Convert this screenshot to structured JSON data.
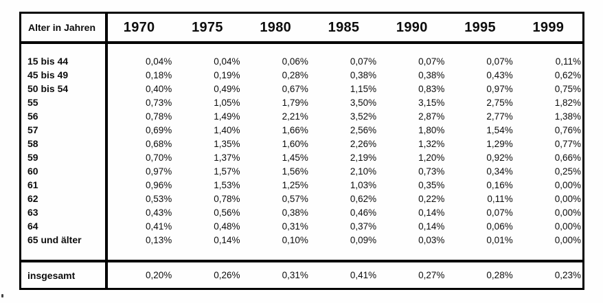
{
  "colors": {
    "background": "#fefefe",
    "border": "#000000",
    "text": "#0c0c0c"
  },
  "table": {
    "corner_header": "Alter in Jahren",
    "years": [
      "1970",
      "1975",
      "1980",
      "1985",
      "1990",
      "1995",
      "1999"
    ],
    "rows": [
      {
        "label": "15 bis 44",
        "values": [
          "0,04%",
          "0,04%",
          "0,06%",
          "0,07%",
          "0,07%",
          "0,07%",
          "0,11%"
        ]
      },
      {
        "label": "45 bis 49",
        "values": [
          "0,18%",
          "0,19%",
          "0,28%",
          "0,38%",
          "0,38%",
          "0,43%",
          "0,62%"
        ]
      },
      {
        "label": "50 bis 54",
        "values": [
          "0,40%",
          "0,49%",
          "0,67%",
          "1,15%",
          "0,83%",
          "0,97%",
          "0,75%"
        ]
      },
      {
        "label": "55",
        "values": [
          "0,73%",
          "1,05%",
          "1,79%",
          "3,50%",
          "3,15%",
          "2,75%",
          "1,82%"
        ]
      },
      {
        "label": "56",
        "values": [
          "0,78%",
          "1,49%",
          "2,21%",
          "3,52%",
          "2,87%",
          "2,77%",
          "1,38%"
        ]
      },
      {
        "label": "57",
        "values": [
          "0,69%",
          "1,40%",
          "1,66%",
          "2,56%",
          "1,80%",
          "1,54%",
          "0,76%"
        ]
      },
      {
        "label": "58",
        "values": [
          "0,68%",
          "1,35%",
          "1,60%",
          "2,26%",
          "1,32%",
          "1,29%",
          "0,77%"
        ]
      },
      {
        "label": "59",
        "values": [
          "0,70%",
          "1,37%",
          "1,45%",
          "2,19%",
          "1,20%",
          "0,92%",
          "0,66%"
        ]
      },
      {
        "label": "60",
        "values": [
          "0,97%",
          "1,57%",
          "1,56%",
          "2,10%",
          "0,73%",
          "0,34%",
          "0,25%"
        ]
      },
      {
        "label": "61",
        "values": [
          "0,96%",
          "1,53%",
          "1,25%",
          "1,03%",
          "0,35%",
          "0,16%",
          "0,00%"
        ]
      },
      {
        "label": "62",
        "values": [
          "0,53%",
          "0,78%",
          "0,57%",
          "0,62%",
          "0,22%",
          "0,11%",
          "0,00%"
        ]
      },
      {
        "label": "63",
        "values": [
          "0,43%",
          "0,56%",
          "0,38%",
          "0,46%",
          "0,14%",
          "0,07%",
          "0,00%"
        ]
      },
      {
        "label": "64",
        "values": [
          "0,41%",
          "0,48%",
          "0,31%",
          "0,37%",
          "0,14%",
          "0,06%",
          "0,00%"
        ]
      },
      {
        "label": "65 und älter",
        "values": [
          "0,13%",
          "0,14%",
          "0,10%",
          "0,09%",
          "0,03%",
          "0,01%",
          "0,00%"
        ]
      }
    ],
    "total_row": {
      "label": "insgesamt",
      "values": [
        "0,20%",
        "0,26%",
        "0,31%",
        "0,41%",
        "0,27%",
        "0,28%",
        "0,23%"
      ]
    }
  }
}
